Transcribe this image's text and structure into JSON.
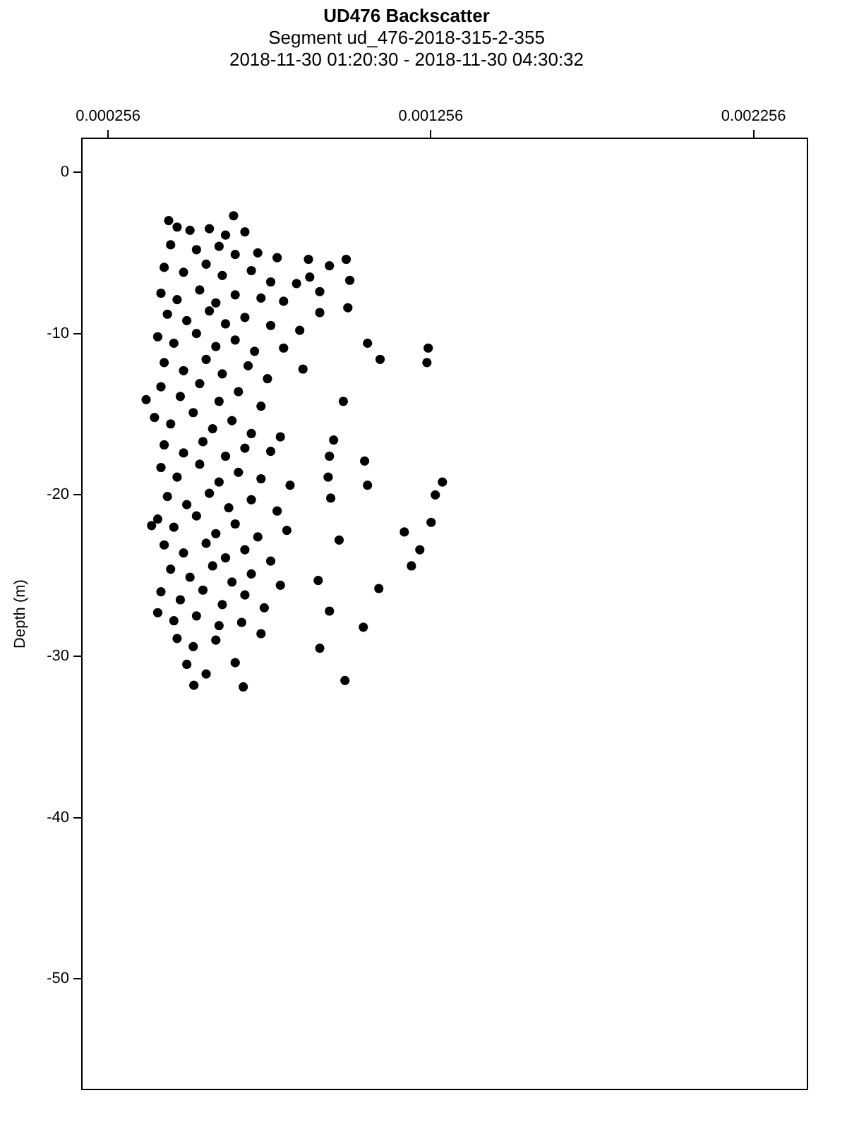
{
  "chart_data": {
    "type": "scatter",
    "title": "UD476 Backscatter",
    "subtitle": "Segment ud_476-2018-315-2-355\n2018-11-30 01:20:30 - 2018-11-30 04:30:32",
    "ylabel": "Depth (m)",
    "xlim": [
      0.000175,
      0.002423
    ],
    "xticks": [
      0.000256,
      0.001256,
      0.002256
    ],
    "ylim": [
      -56.85,
      2.1
    ],
    "yticks": [
      -50,
      -40,
      -30,
      -20,
      -10,
      0
    ],
    "grid": false,
    "legend": false,
    "marker": "circle",
    "series": [
      {
        "color": "#000000",
        "x": [
          0.000444,
          0.000645,
          0.00047,
          0.00051,
          0.00057,
          0.00062,
          0.00068,
          0.00045,
          0.00053,
          0.0006,
          0.00065,
          0.00072,
          0.00078,
          0.00043,
          0.00049,
          0.00056,
          0.00061,
          0.0007,
          0.00076,
          0.00084,
          0.00042,
          0.00047,
          0.00054,
          0.00059,
          0.00065,
          0.00073,
          0.0008,
          0.00044,
          0.0005,
          0.00057,
          0.00062,
          0.00068,
          0.00076,
          0.00085,
          0.00041,
          0.00046,
          0.00053,
          0.00059,
          0.00065,
          0.00071,
          0.0008,
          0.00043,
          0.00049,
          0.00056,
          0.00061,
          0.00069,
          0.00075,
          0.00086,
          0.00042,
          0.00048,
          0.00054,
          0.0006,
          0.00066,
          0.00073,
          0.0004,
          0.00045,
          0.00052,
          0.00058,
          0.00064,
          0.0007,
          0.00079,
          0.00043,
          0.00049,
          0.00055,
          0.00062,
          0.00068,
          0.00076,
          0.00042,
          0.00047,
          0.00054,
          0.0006,
          0.00066,
          0.00073,
          0.00082,
          0.00044,
          0.0005,
          0.00057,
          0.00063,
          0.0007,
          0.00078,
          0.00041,
          0.00046,
          0.00053,
          0.00059,
          0.00065,
          0.00072,
          0.00081,
          0.00043,
          0.00049,
          0.00056,
          0.00062,
          0.00068,
          0.00076,
          0.00045,
          0.00051,
          0.00058,
          0.00064,
          0.0007,
          0.00079,
          0.00042,
          0.00048,
          0.00055,
          0.00061,
          0.00068,
          0.00074,
          0.00041,
          0.00046,
          0.00053,
          0.0006,
          0.00067,
          0.00073,
          0.00047,
          0.00052,
          0.00059,
          0.00065,
          0.0005,
          0.00056,
          0.000374,
          0.000391,
          0.001248,
          0.001244,
          0.001099,
          0.001292,
          0.00127,
          0.001257,
          0.001174,
          0.001222,
          0.001196,
          0.001095,
          0.001047,
          0.00099,
          0.000522,
          0.000675,
          0.000912,
          0.001051,
          0.00106,
          0.000999,
          0.00106,
          0.000994,
          0.001005,
          0.000942,
          0.000877,
          0.000881,
          0.000912,
          0.000912,
          0.000955,
          0.000985,
          0.000942,
          0.000938,
          0.000946,
          0.000972,
          0.000907,
          0.000942
        ],
        "values": [
          -3.0,
          -2.7,
          -3.4,
          -3.6,
          -3.5,
          -3.9,
          -3.7,
          -4.5,
          -4.8,
          -4.6,
          -5.1,
          -5.0,
          -5.3,
          -5.9,
          -6.2,
          -5.7,
          -6.4,
          -6.1,
          -6.8,
          -6.9,
          -7.5,
          -7.9,
          -7.3,
          -8.1,
          -7.6,
          -7.8,
          -8.0,
          -8.8,
          -9.2,
          -8.6,
          -9.4,
          -9.0,
          -9.5,
          -9.8,
          -10.2,
          -10.6,
          -10.0,
          -10.8,
          -10.4,
          -11.1,
          -10.9,
          -11.8,
          -12.3,
          -11.6,
          -12.5,
          -12.0,
          -12.8,
          -12.2,
          -13.3,
          -13.9,
          -13.1,
          -14.2,
          -13.6,
          -14.5,
          -15.2,
          -15.6,
          -14.9,
          -15.9,
          -15.4,
          -16.2,
          -16.4,
          -16.9,
          -17.4,
          -16.7,
          -17.6,
          -17.1,
          -17.3,
          -18.3,
          -18.9,
          -18.1,
          -19.2,
          -18.6,
          -19.0,
          -19.4,
          -20.1,
          -20.6,
          -19.9,
          -20.8,
          -20.3,
          -21.0,
          -21.5,
          -22.0,
          -21.3,
          -22.4,
          -21.8,
          -22.6,
          -22.2,
          -23.1,
          -23.6,
          -23.0,
          -23.9,
          -23.4,
          -24.1,
          -24.6,
          -25.1,
          -24.4,
          -25.4,
          -24.9,
          -25.6,
          -26.0,
          -26.5,
          -25.9,
          -26.8,
          -26.2,
          -27.0,
          -27.3,
          -27.8,
          -27.5,
          -28.1,
          -27.9,
          -28.6,
          -28.9,
          -29.4,
          -29.0,
          -30.4,
          -30.5,
          -31.1,
          -14.1,
          -21.9,
          -10.9,
          -11.8,
          -11.6,
          -19.2,
          -20.0,
          -21.7,
          -22.3,
          -23.4,
          -24.4,
          -25.8,
          -28.2,
          -31.5,
          -31.8,
          -31.9,
          -29.5,
          -17.9,
          -19.4,
          -8.4,
          -10.6,
          -5.4,
          -6.7,
          -5.8,
          -5.4,
          -6.5,
          -7.4,
          -8.7,
          -16.6,
          -14.2,
          -17.6,
          -18.9,
          -20.2,
          -22.8,
          -25.3,
          -27.2
        ]
      }
    ]
  }
}
